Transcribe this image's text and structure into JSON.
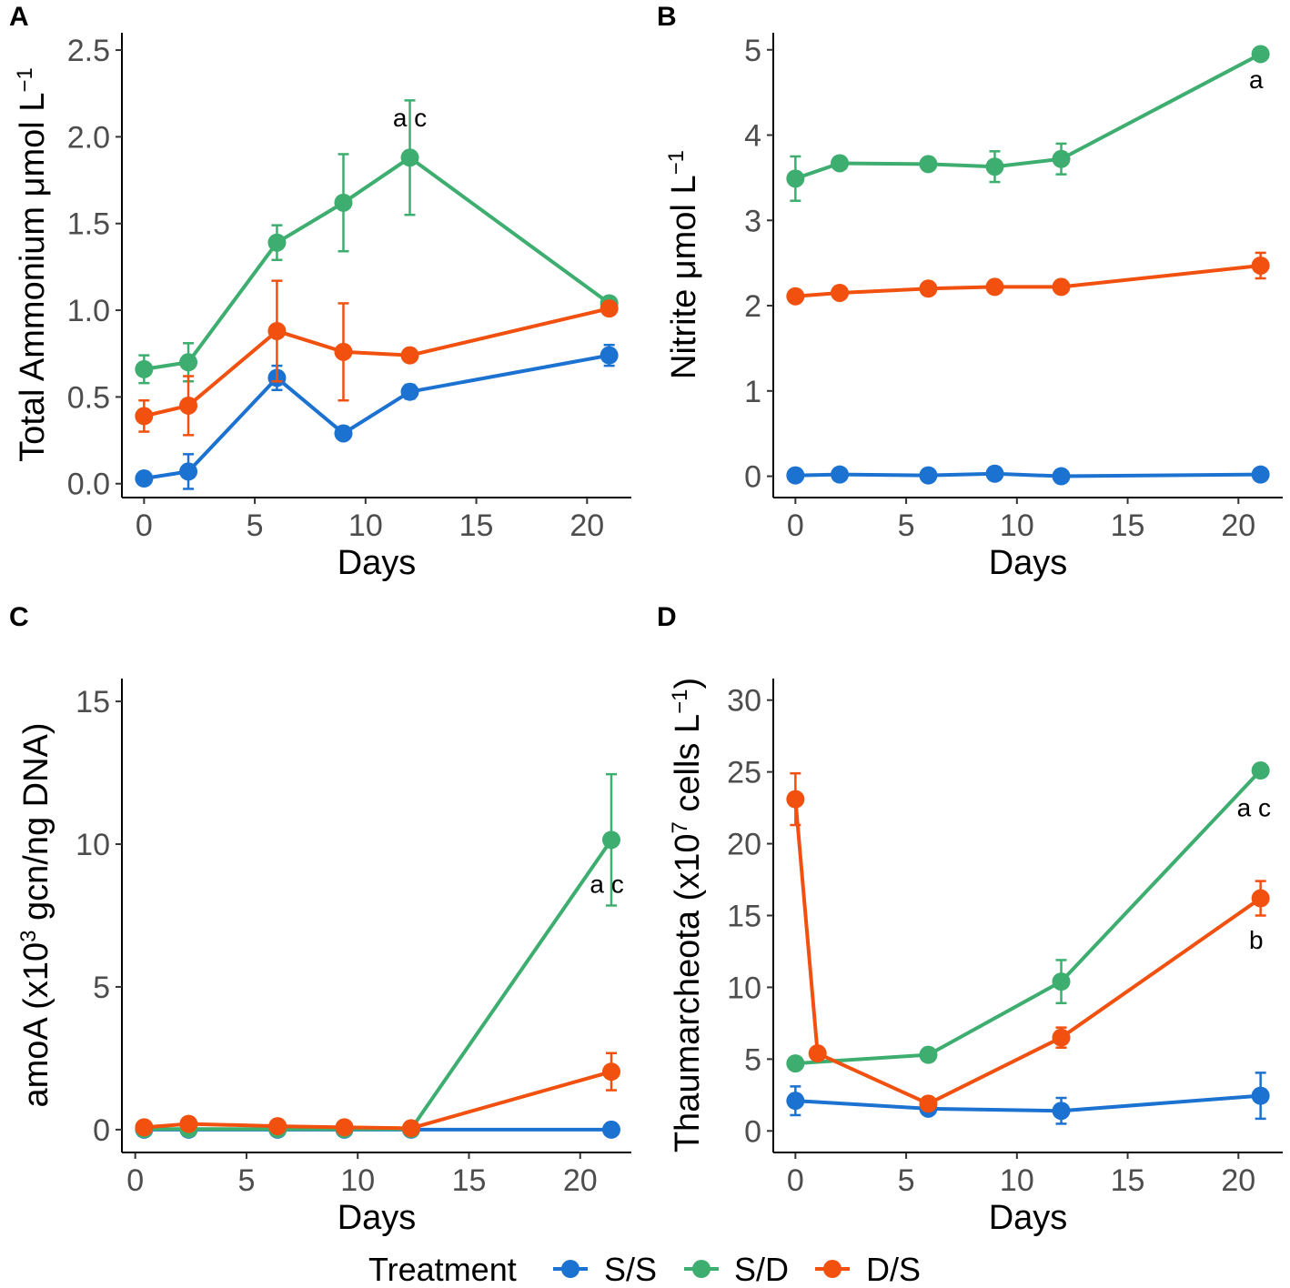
{
  "legend": {
    "title": "Treatment",
    "entries": [
      {
        "key": "SS",
        "label": "S/S",
        "color": "#1b72d1"
      },
      {
        "key": "SD",
        "label": "S/D",
        "color": "#3dae6f"
      },
      {
        "key": "DS",
        "label": "D/S",
        "color": "#f2500f"
      }
    ]
  },
  "chart_data": [
    {
      "panel": "A",
      "type": "line",
      "title": "",
      "xlabel": "Days",
      "ylabel": "Total Ammonium μmol L",
      "ylabel_sup": "−1",
      "xlim": [
        -1,
        22
      ],
      "ylim": [
        -0.08,
        2.6
      ],
      "xticks": [
        0,
        5,
        10,
        15,
        20
      ],
      "xtick_labels": [
        "0",
        "5",
        "10",
        "15",
        "20"
      ],
      "yticks": [
        0,
        0.5,
        1,
        1.5,
        2,
        2.5
      ],
      "ytick_labels": [
        "0.0",
        "0.5",
        "1.0",
        "1.5",
        "2.0",
        "2.5"
      ],
      "series": [
        {
          "name": "S/S",
          "x": [
            0,
            2,
            6,
            9,
            12,
            21
          ],
          "y": [
            0.03,
            0.07,
            0.61,
            0.29,
            0.53,
            0.74
          ],
          "err": [
            0.03,
            0.1,
            0.07,
            0.02,
            0.04,
            0.06
          ]
        },
        {
          "name": "S/D",
          "x": [
            0,
            2,
            6,
            9,
            12,
            21
          ],
          "y": [
            0.66,
            0.7,
            1.39,
            1.62,
            1.88,
            1.04
          ],
          "err": [
            0.08,
            0.11,
            0.1,
            0.28,
            0.33,
            0.02
          ]
        },
        {
          "name": "D/S",
          "x": [
            0,
            2,
            6,
            9,
            12,
            21
          ],
          "y": [
            0.39,
            0.45,
            0.88,
            0.76,
            0.74,
            1.01
          ],
          "err": [
            0.09,
            0.17,
            0.29,
            0.28,
            0.02,
            0.03
          ]
        }
      ],
      "annotations": [
        {
          "text": "a c",
          "x": 12,
          "y": 2.06
        }
      ]
    },
    {
      "panel": "B",
      "type": "line",
      "title": "",
      "xlabel": "Days",
      "ylabel": "Nitrite μmol L",
      "ylabel_sup": "−1",
      "xlim": [
        -1,
        22
      ],
      "ylim": [
        -0.25,
        5.2
      ],
      "xticks": [
        0,
        5,
        10,
        15,
        20
      ],
      "xtick_labels": [
        "0",
        "5",
        "10",
        "15",
        "20"
      ],
      "yticks": [
        0,
        1,
        2,
        3,
        4,
        5
      ],
      "ytick_labels": [
        "0",
        "1",
        "2",
        "3",
        "4",
        "5"
      ],
      "series": [
        {
          "name": "S/S",
          "x": [
            0,
            2,
            6,
            9,
            12,
            21
          ],
          "y": [
            0.01,
            0.02,
            0.01,
            0.03,
            0.0,
            0.02
          ],
          "err": [
            0.02,
            0.02,
            0.02,
            0.03,
            0.03,
            0.02
          ]
        },
        {
          "name": "S/D",
          "x": [
            0,
            2,
            6,
            9,
            12,
            21
          ],
          "y": [
            3.49,
            3.67,
            3.66,
            3.63,
            3.72,
            4.95
          ],
          "err": [
            0.26,
            0.07,
            0.07,
            0.18,
            0.18,
            0.03
          ]
        },
        {
          "name": "D/S",
          "x": [
            0,
            2,
            6,
            9,
            12,
            21
          ],
          "y": [
            2.11,
            2.15,
            2.2,
            2.22,
            2.22,
            2.47
          ],
          "err": [
            0.03,
            0.03,
            0.03,
            0.03,
            0.03,
            0.15
          ]
        }
      ],
      "annotations": [
        {
          "text": "a",
          "x": 20.8,
          "y": 4.55
        }
      ]
    },
    {
      "panel": "C",
      "type": "line",
      "title": "",
      "xlabel": "Days",
      "ylabel_prefix": "amoA (x10",
      "ylabel_sup": "3",
      "ylabel_suffix": " gcn/ng DNA)",
      "xlim": [
        -0.6,
        22.3
      ],
      "ylim": [
        -0.8,
        15.8
      ],
      "xticks": [
        0,
        5,
        10,
        15,
        20
      ],
      "xtick_labels": [
        "0",
        "5",
        "10",
        "15",
        "20"
      ],
      "yticks": [
        0,
        5,
        10,
        15
      ],
      "ytick_labels": [
        "0",
        "5",
        "10",
        "15"
      ],
      "series": [
        {
          "name": "S/S",
          "x": [
            0.4,
            2.4,
            6.4,
            9.4,
            12.4,
            21.4
          ],
          "y": [
            0.0,
            0.0,
            0.0,
            0.0,
            0.0,
            0.0
          ],
          "err": [
            0.05,
            0.05,
            0.05,
            0.05,
            0.05,
            0.05
          ]
        },
        {
          "name": "S/D",
          "x": [
            0.4,
            2.4,
            6.4,
            9.4,
            12.4,
            21.4
          ],
          "y": [
            0.02,
            0.02,
            0.02,
            0.02,
            0.02,
            10.15
          ],
          "err": [
            0.05,
            0.05,
            0.05,
            0.05,
            0.05,
            2.3
          ]
        },
        {
          "name": "D/S",
          "x": [
            0.4,
            2.4,
            6.4,
            9.4,
            12.4,
            21.4
          ],
          "y": [
            0.08,
            0.2,
            0.12,
            0.08,
            0.05,
            2.03
          ],
          "err": [
            0.1,
            0.12,
            0.1,
            0.08,
            0.06,
            0.65
          ]
        }
      ],
      "annotations": [
        {
          "text": "a c",
          "x": 21.2,
          "y": 8.3
        }
      ]
    },
    {
      "panel": "D",
      "type": "line",
      "title": "",
      "xlabel": "Days",
      "ylabel_prefix": "Thaumarcheota (x10",
      "ylabel_sup": "7",
      "ylabel_mid": " cells L",
      "ylabel_sup2": "−1",
      "ylabel_suffix": ")",
      "xlim": [
        -1,
        22
      ],
      "ylim": [
        -1.5,
        31.5
      ],
      "xticks": [
        0,
        5,
        10,
        15,
        20
      ],
      "xtick_labels": [
        "0",
        "5",
        "10",
        "15",
        "20"
      ],
      "yticks": [
        0,
        5,
        10,
        15,
        20,
        25,
        30
      ],
      "ytick_labels": [
        "0",
        "5",
        "10",
        "15",
        "20",
        "25",
        "30"
      ],
      "series": [
        {
          "name": "S/S",
          "x": [
            0,
            6,
            12,
            21
          ],
          "y": [
            2.1,
            1.55,
            1.4,
            2.45
          ],
          "err": [
            1.0,
            0.4,
            0.9,
            1.6
          ]
        },
        {
          "name": "S/D",
          "x": [
            0,
            6,
            12,
            21
          ],
          "y": [
            4.7,
            5.3,
            10.4,
            25.1
          ],
          "err": [
            0.1,
            0.1,
            1.5,
            0.2
          ]
        },
        {
          "name": "D/S",
          "x": [
            0,
            1,
            6,
            12,
            21
          ],
          "y": [
            23.1,
            5.4,
            1.9,
            6.5,
            16.2
          ],
          "err": [
            1.8,
            0.2,
            0.1,
            0.7,
            1.2
          ]
        }
      ],
      "annotations": [
        {
          "text": "a c",
          "x": 20.7,
          "y": 21.9
        },
        {
          "text": "b",
          "x": 20.8,
          "y": 12.7
        }
      ]
    }
  ]
}
